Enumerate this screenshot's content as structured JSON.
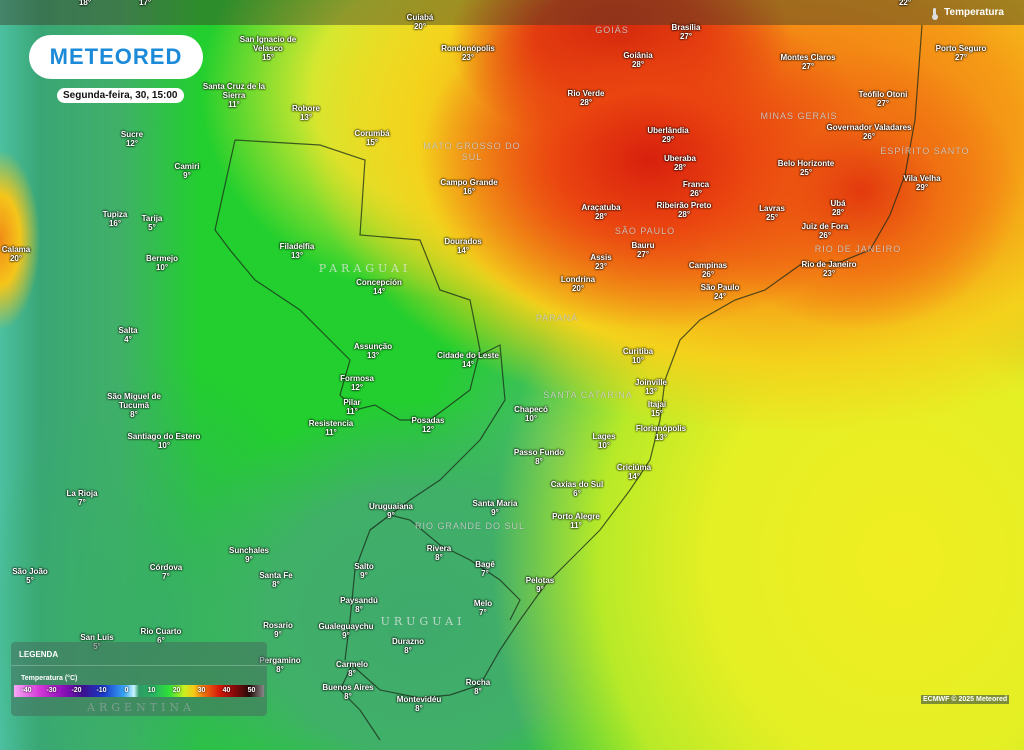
{
  "header": {
    "logo_text": "METEORED",
    "datetime": "Segunda-feira, 30, 15:00",
    "layer_label": "Temperatura",
    "layer_icon": "thermometer-icon"
  },
  "legend": {
    "title": "LEGENDA",
    "subtitle": "Temperatura (°C)",
    "ticks": [
      "-40",
      "-30",
      "-20",
      "-10",
      "0",
      "10",
      "20",
      "30",
      "40",
      "50"
    ]
  },
  "credit": "ECMWF © 2025 Meteored",
  "countries": [
    "PARAGUAI",
    "URUGUAI",
    "ARGENTINA"
  ],
  "regions": [
    "GOIÁS",
    "MATO GROSSO DO\nSUL",
    "MINAS GERAIS",
    "ESPÍRITO SANTO",
    "SÃO PAULO",
    "RIO DE JANEIRO",
    "PARANÁ",
    "SANTA CATARINA",
    "RIO GRANDE DO SUL"
  ],
  "cities": [
    {
      "name": "",
      "temp": "18°"
    },
    {
      "name": "",
      "temp": "17°"
    },
    {
      "name": "",
      "temp": "22°"
    },
    {
      "name": "Cuiabá",
      "temp": "20°"
    },
    {
      "name": "San Ignacio de\nVelasco",
      "temp": "15°"
    },
    {
      "name": "Santa Cruz de la\nSierra",
      "temp": "11°"
    },
    {
      "name": "Robore",
      "temp": "13°"
    },
    {
      "name": "Sucre",
      "temp": "12°"
    },
    {
      "name": "Camiri",
      "temp": "9°"
    },
    {
      "name": "Tupiza",
      "temp": "16°"
    },
    {
      "name": "Tarija",
      "temp": "5°"
    },
    {
      "name": "Calama",
      "temp": "20°"
    },
    {
      "name": "Bermejo",
      "temp": "10°"
    },
    {
      "name": "Filadelfia",
      "temp": "13°"
    },
    {
      "name": "Rondonópolis",
      "temp": "23°"
    },
    {
      "name": "Corumbá",
      "temp": "15°"
    },
    {
      "name": "Campo Grande",
      "temp": "16°"
    },
    {
      "name": "Dourados",
      "temp": "14°"
    },
    {
      "name": "Brasília",
      "temp": "27°"
    },
    {
      "name": "Goiânia",
      "temp": "28°"
    },
    {
      "name": "Rio Verde",
      "temp": "28°"
    },
    {
      "name": "Uberlândia",
      "temp": "29°"
    },
    {
      "name": "Uberaba",
      "temp": "28°"
    },
    {
      "name": "Franca",
      "temp": "26°"
    },
    {
      "name": "Ribeirão Preto",
      "temp": "28°"
    },
    {
      "name": "Araçatuba",
      "temp": "28°"
    },
    {
      "name": "Bauru",
      "temp": "27°"
    },
    {
      "name": "Assis",
      "temp": "23°"
    },
    {
      "name": "Londrina",
      "temp": "20°"
    },
    {
      "name": "Campinas",
      "temp": "26°"
    },
    {
      "name": "São Paulo",
      "temp": "24°"
    },
    {
      "name": "Montes Claros",
      "temp": "27°"
    },
    {
      "name": "Porto Seguro",
      "temp": "27°"
    },
    {
      "name": "Teófilo Otoni",
      "temp": "27°"
    },
    {
      "name": "Governador Valadares",
      "temp": "26°"
    },
    {
      "name": "Belo Horizonte",
      "temp": "25°"
    },
    {
      "name": "Vila Velha",
      "temp": "29°"
    },
    {
      "name": "Ubá",
      "temp": "28°"
    },
    {
      "name": "Lavras",
      "temp": "25°"
    },
    {
      "name": "Juiz de Fora",
      "temp": "26°"
    },
    {
      "name": "Rio de Janeiro",
      "temp": "23°"
    },
    {
      "name": "Salta",
      "temp": "4°"
    },
    {
      "name": "São Miguel de\nTucumã",
      "temp": "8°"
    },
    {
      "name": "Santiago do Estero",
      "temp": "10°"
    },
    {
      "name": "Concepción",
      "temp": "14°"
    },
    {
      "name": "Assunção",
      "temp": "13°"
    },
    {
      "name": "Formosa",
      "temp": "12°"
    },
    {
      "name": "Pilar",
      "temp": "11°"
    },
    {
      "name": "Resistencia",
      "temp": "11°"
    },
    {
      "name": "Posadas",
      "temp": "12°"
    },
    {
      "name": "Cidade do Leste",
      "temp": "14°"
    },
    {
      "name": "Chapecó",
      "temp": "10°"
    },
    {
      "name": "Curitiba",
      "temp": "10°"
    },
    {
      "name": "Joinville",
      "temp": "13°"
    },
    {
      "name": "Itajaí",
      "temp": "15°"
    },
    {
      "name": "Florianópolis",
      "temp": "13°"
    },
    {
      "name": "Lages",
      "temp": "10°"
    },
    {
      "name": "Passo Fundo",
      "temp": "8°"
    },
    {
      "name": "Criciúma",
      "temp": "14°"
    },
    {
      "name": "Caxias do Sul",
      "temp": "6°"
    },
    {
      "name": "Santa Maria",
      "temp": "9°"
    },
    {
      "name": "Porto Alegre",
      "temp": "11°"
    },
    {
      "name": "Uruguaiana",
      "temp": "9°"
    },
    {
      "name": "La Rioja",
      "temp": "7°"
    },
    {
      "name": "São João",
      "temp": "5°"
    },
    {
      "name": "Córdova",
      "temp": "7°"
    },
    {
      "name": "San Luis",
      "temp": "5°"
    },
    {
      "name": "Rio Cuarto",
      "temp": "6°"
    },
    {
      "name": "Sunchales",
      "temp": "9°"
    },
    {
      "name": "Santa Fe",
      "temp": "8°"
    },
    {
      "name": "Rosario",
      "temp": "9°"
    },
    {
      "name": "Pergamino",
      "temp": "8°"
    },
    {
      "name": "Salto",
      "temp": "9°"
    },
    {
      "name": "Rivera",
      "temp": "8°"
    },
    {
      "name": "Bagê",
      "temp": "7°"
    },
    {
      "name": "Pelotas",
      "temp": "9°"
    },
    {
      "name": "Paysandú",
      "temp": "8°"
    },
    {
      "name": "Melo",
      "temp": "7°"
    },
    {
      "name": "Gualeguaychu",
      "temp": "9°"
    },
    {
      "name": "Durazno",
      "temp": "8°"
    },
    {
      "name": "Carmelo",
      "temp": "8°"
    },
    {
      "name": "Buenos Aires",
      "temp": "8°"
    },
    {
      "name": "Rocha",
      "temp": "8°"
    },
    {
      "name": "Montevidéu",
      "temp": "8°"
    }
  ]
}
